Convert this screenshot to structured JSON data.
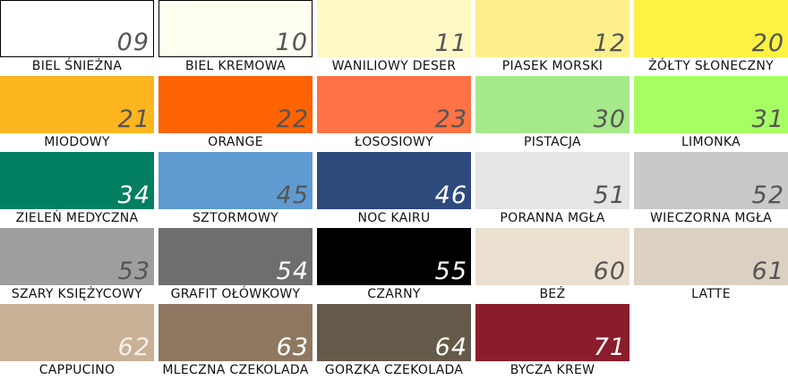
{
  "swatches": [
    {
      "code": "09",
      "name": "BIEL ŚNIEŻNA",
      "color": "#ffffff",
      "text": "#555555",
      "border": true
    },
    {
      "code": "10",
      "name": "BIEL KREMOWA",
      "color": "#fefff0",
      "text": "#555555",
      "border": true
    },
    {
      "code": "11",
      "name": "WANILIOWY DESER",
      "color": "#fdf8c4",
      "text": "#555555"
    },
    {
      "code": "12",
      "name": "PIASEK MORSKI",
      "color": "#fdf08c",
      "text": "#555555"
    },
    {
      "code": "20",
      "name": "ŻÓŁTY SŁONECZNY",
      "color": "#fdf241",
      "text": "#555555"
    },
    {
      "code": "21",
      "name": "MIODOWY",
      "color": "#fdb520",
      "text": "#555555"
    },
    {
      "code": "22",
      "name": "ORANGE",
      "color": "#fd6303",
      "text": "#555555"
    },
    {
      "code": "23",
      "name": "ŁOSOSIOWY",
      "color": "#fd7345",
      "text": "#555555"
    },
    {
      "code": "30",
      "name": "PISTACJA",
      "color": "#a5e98a",
      "text": "#555555"
    },
    {
      "code": "31",
      "name": "LIMONKA",
      "color": "#a6fe63",
      "text": "#555555"
    },
    {
      "code": "34",
      "name": "ZIELEŃ MEDYCZNA",
      "color": "#027f60",
      "text": "#ffffff"
    },
    {
      "code": "45",
      "name": "SZTORMOWY",
      "color": "#5f9bd0",
      "text": "#555555"
    },
    {
      "code": "46",
      "name": "NOC KAIRU",
      "color": "#2e4a7d",
      "text": "#ffffff"
    },
    {
      "code": "51",
      "name": "PORANNA MGŁA",
      "color": "#e5e5e3",
      "text": "#555555"
    },
    {
      "code": "52",
      "name": "WIECZORNA MGŁA",
      "color": "#c9c9c9",
      "text": "#555555"
    },
    {
      "code": "53",
      "name": "SZARY KSIĘŻYCOWY",
      "color": "#9e9e9c",
      "text": "#555555"
    },
    {
      "code": "54",
      "name": "GRAFIT OŁÓWKOWY",
      "color": "#6e6e6e",
      "text": "#ffffff"
    },
    {
      "code": "55",
      "name": "CZARNY",
      "color": "#000000",
      "text": "#ffffff"
    },
    {
      "code": "60",
      "name": "BEŻ",
      "color": "#ebdfd0",
      "text": "#555555"
    },
    {
      "code": "61",
      "name": "LATTE",
      "color": "#dbd0c2",
      "text": "#555555"
    },
    {
      "code": "62",
      "name": "CAPPUCINO",
      "color": "#c8b196",
      "text": "#f4f0ea"
    },
    {
      "code": "63",
      "name": "MLECZNA CZEKOLADA",
      "color": "#8e7861",
      "text": "#ffffff"
    },
    {
      "code": "64",
      "name": "GORZKA CZEKOLADA",
      "color": "#655a49",
      "text": "#ffffff"
    },
    {
      "code": "71",
      "name": "BYCZA KREW",
      "color": "#8b1c2b",
      "text": "#ffffff"
    }
  ]
}
